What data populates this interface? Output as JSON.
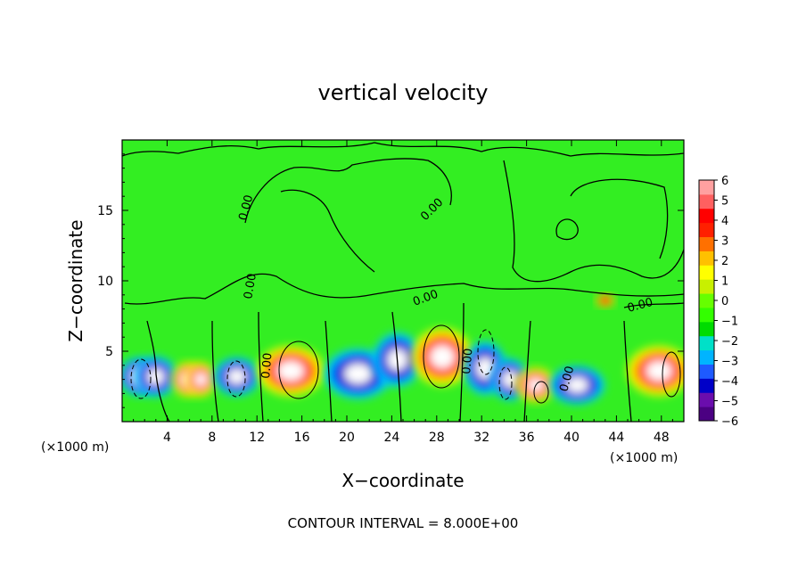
{
  "chart_data": {
    "type": "heatmap",
    "title": "vertical velocity",
    "xlabel": "X−coordinate",
    "ylabel": "Z−coordinate",
    "x_unit_left": "(×1000 m)",
    "x_unit_right": "(×1000 m)",
    "footer": "CONTOUR INTERVAL = 8.000E+00",
    "xlim": [
      0,
      50
    ],
    "ylim": [
      0,
      20
    ],
    "xticks": [
      4,
      8,
      12,
      16,
      20,
      24,
      28,
      32,
      36,
      40,
      44,
      48
    ],
    "yticks": [
      5,
      10,
      15
    ],
    "colorbar": {
      "range": [
        -6,
        6
      ],
      "ticks": [
        "6",
        "5",
        "4",
        "3",
        "2",
        "1",
        "0",
        "−1",
        "−2",
        "−3",
        "−4",
        "−5",
        "−6"
      ],
      "colors": [
        "#4b0082",
        "#6a0dad",
        "#0000c8",
        "#1e5aff",
        "#00b4ff",
        "#00e0c8",
        "#00dc00",
        "#33ff00",
        "#66ff00",
        "#c8f000",
        "#ffff00",
        "#ffc000",
        "#ff7000",
        "#ff2000",
        "#ff0000",
        "#ff6060",
        "#ffa0a0"
      ]
    },
    "contour_labels": [
      "0.00",
      "0.00",
      "0.00",
      "0.00",
      "0.00",
      "0.00",
      "0.00",
      "0.00"
    ],
    "cells": [
      {
        "x": 1.5,
        "z": 3.2,
        "w": -6,
        "sx": 1.3,
        "sz": 2.0
      },
      {
        "x": 3.0,
        "z": 3.2,
        "w": -6,
        "sx": 1.4,
        "sz": 2.1
      },
      {
        "x": 5.8,
        "z": 3.0,
        "w": 6,
        "sx": 1.0,
        "sz": 1.8
      },
      {
        "x": 7.0,
        "z": 3.0,
        "w": 6,
        "sx": 1.0,
        "sz": 1.8
      },
      {
        "x": 10.2,
        "z": 3.2,
        "w": -6,
        "sx": 1.5,
        "sz": 2.0
      },
      {
        "x": 15.0,
        "z": 3.6,
        "w": 6,
        "sx": 2.2,
        "sz": 2.6
      },
      {
        "x": 21.0,
        "z": 3.4,
        "w": -6,
        "sx": 2.2,
        "sz": 2.6
      },
      {
        "x": 24.5,
        "z": 4.4,
        "w": -6,
        "sx": 1.6,
        "sz": 2.8
      },
      {
        "x": 28.5,
        "z": 4.6,
        "w": 6,
        "sx": 2.0,
        "sz": 3.0
      },
      {
        "x": 32.3,
        "z": 3.8,
        "w": -6,
        "sx": 1.4,
        "sz": 2.8
      },
      {
        "x": 34.5,
        "z": 3.0,
        "w": -6,
        "sx": 1.2,
        "sz": 2.2
      },
      {
        "x": 36.8,
        "z": 2.6,
        "w": 6,
        "sx": 1.3,
        "sz": 1.8
      },
      {
        "x": 40.5,
        "z": 2.6,
        "w": -6,
        "sx": 1.8,
        "sz": 2.0
      },
      {
        "x": 47.8,
        "z": 3.6,
        "w": 6,
        "sx": 2.1,
        "sz": 2.6
      },
      {
        "x": 43.0,
        "z": 8.6,
        "w": 5,
        "sx": 0.6,
        "sz": 0.7
      }
    ]
  }
}
